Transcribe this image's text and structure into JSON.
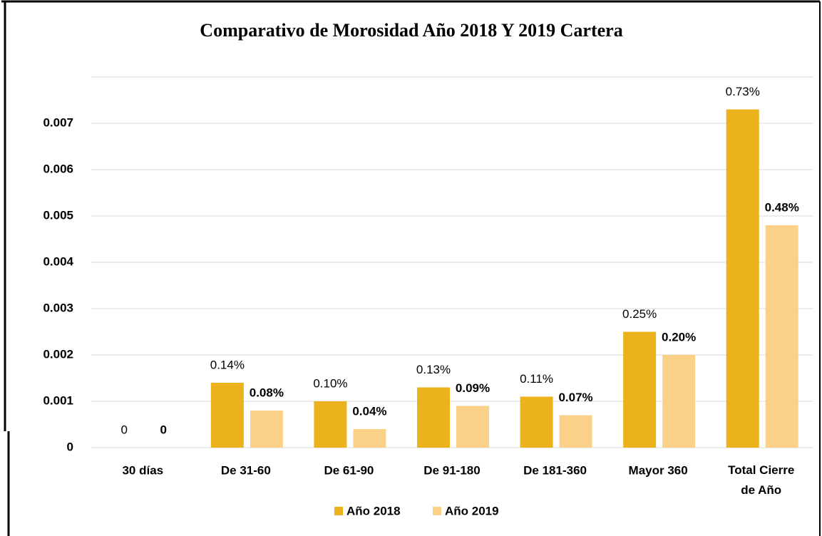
{
  "chart_data": {
    "type": "bar",
    "title": "Comparativo de Morosidad Año 2018 Y 2019 Cartera",
    "categories": [
      "30 días",
      "De 31-60",
      "De 61-90",
      "De 91-180",
      "De 181-360",
      "Mayor 360",
      "Total Cierre de Año"
    ],
    "series": [
      {
        "name": "Año 2018",
        "color": "#ebb21c",
        "values": [
          0,
          0.0014,
          0.001,
          0.0013,
          0.0011,
          0.0025,
          0.0073
        ],
        "value_labels": [
          "0",
          "0.14%",
          "0.10%",
          "0.13%",
          "0.11%",
          "0.25%",
          "0.73%"
        ]
      },
      {
        "name": "Año 2019",
        "color": "#fbd189",
        "values": [
          0,
          0.0008,
          0.0004,
          0.0009,
          0.0007,
          0.002,
          0.0048
        ],
        "value_labels": [
          "0",
          "0.08%",
          "0.04%",
          "0.09%",
          "0.07%",
          "0.20%",
          "0.48%"
        ]
      }
    ],
    "ylim": [
      0,
      0.008
    ],
    "yticks": [
      0,
      0.001,
      0.002,
      0.003,
      0.004,
      0.005,
      0.006,
      0.007
    ],
    "grid": true,
    "legend": "bottom"
  }
}
